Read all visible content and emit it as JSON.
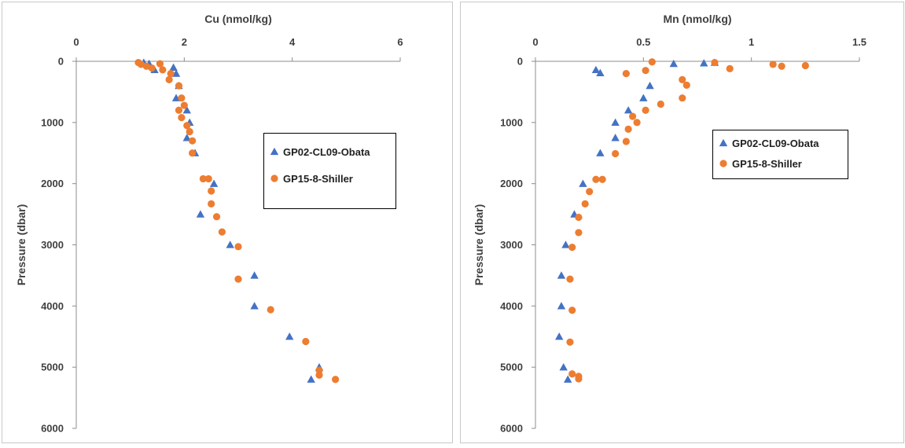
{
  "colors": {
    "series_a": "#4472C4",
    "series_b": "#ED7D31",
    "axis": "#8c8c8c",
    "panel_border": "#c8c8c8",
    "legend_border": "#000000",
    "text": "#404040"
  },
  "chart_data": [
    {
      "type": "scatter",
      "title": "",
      "xlabel": "Cu (nmol/kg)",
      "ylabel": "Pressure (dbar)",
      "x_axis_position": "top",
      "y_axis_reversed": true,
      "xlim": [
        0,
        6
      ],
      "ylim": [
        0,
        6000
      ],
      "xticks": [
        "0",
        "2",
        "4",
        "6"
      ],
      "yticks": [
        "0",
        "1000",
        "2000",
        "3000",
        "4000",
        "5000",
        "6000"
      ],
      "grid": false,
      "legend_position": "center-right",
      "series": [
        {
          "name": "GP02-CL09-Obata",
          "marker": "triangle",
          "color": "#4472C4",
          "points": [
            [
              1.25,
              20
            ],
            [
              1.35,
              40
            ],
            [
              1.45,
              140
            ],
            [
              1.8,
              100
            ],
            [
              1.85,
              200
            ],
            [
              1.9,
              400
            ],
            [
              1.85,
              600
            ],
            [
              2.05,
              800
            ],
            [
              2.1,
              1000
            ],
            [
              2.05,
              1250
            ],
            [
              2.2,
              1500
            ],
            [
              2.55,
              2000
            ],
            [
              2.3,
              2500
            ],
            [
              2.85,
              3000
            ],
            [
              3.3,
              3500
            ],
            [
              3.3,
              4000
            ],
            [
              3.95,
              4500
            ],
            [
              4.5,
              5000
            ],
            [
              4.35,
              5200
            ]
          ]
        },
        {
          "name": "GP15-8-Shiller",
          "marker": "circle",
          "color": "#ED7D31",
          "points": [
            [
              1.15,
              20
            ],
            [
              1.2,
              50
            ],
            [
              1.3,
              80
            ],
            [
              1.4,
              110
            ],
            [
              1.55,
              40
            ],
            [
              1.6,
              140
            ],
            [
              1.75,
              200
            ],
            [
              1.72,
              300
            ],
            [
              1.9,
              400
            ],
            [
              1.95,
              600
            ],
            [
              2.0,
              720
            ],
            [
              1.9,
              800
            ],
            [
              1.95,
              920
            ],
            [
              2.05,
              1050
            ],
            [
              2.1,
              1150
            ],
            [
              2.15,
              1300
            ],
            [
              2.15,
              1500
            ],
            [
              2.35,
              1920
            ],
            [
              2.45,
              1920
            ],
            [
              2.5,
              2120
            ],
            [
              2.5,
              2330
            ],
            [
              2.6,
              2540
            ],
            [
              2.7,
              2790
            ],
            [
              3.0,
              3030
            ],
            [
              3.0,
              3560
            ],
            [
              3.6,
              4060
            ],
            [
              4.25,
              4580
            ],
            [
              4.5,
              5050
            ],
            [
              4.5,
              5130
            ],
            [
              4.8,
              5200
            ]
          ]
        }
      ]
    },
    {
      "type": "scatter",
      "title": "",
      "xlabel": "Mn (nmol/kg)",
      "ylabel": "Pressure (dbar)",
      "x_axis_position": "top",
      "y_axis_reversed": true,
      "xlim": [
        0,
        1.5
      ],
      "ylim": [
        0,
        6000
      ],
      "xticks": [
        "0",
        "0.5",
        "1",
        "1.5"
      ],
      "yticks": [
        "0",
        "1000",
        "2000",
        "3000",
        "4000",
        "5000",
        "6000"
      ],
      "grid": false,
      "legend_position": "center-right",
      "series": [
        {
          "name": "GP02-CL09-Obata",
          "marker": "triangle",
          "color": "#4472C4",
          "points": [
            [
              0.64,
              40
            ],
            [
              0.78,
              30
            ],
            [
              0.83,
              20
            ],
            [
              0.28,
              140
            ],
            [
              0.3,
              190
            ],
            [
              0.53,
              400
            ],
            [
              0.5,
              600
            ],
            [
              0.43,
              800
            ],
            [
              0.37,
              1000
            ],
            [
              0.37,
              1250
            ],
            [
              0.3,
              1500
            ],
            [
              0.22,
              2000
            ],
            [
              0.18,
              2500
            ],
            [
              0.14,
              3000
            ],
            [
              0.12,
              3500
            ],
            [
              0.12,
              4000
            ],
            [
              0.11,
              4500
            ],
            [
              0.13,
              5000
            ],
            [
              0.15,
              5200
            ]
          ]
        },
        {
          "name": "GP15-8-Shiller",
          "marker": "circle",
          "color": "#ED7D31",
          "points": [
            [
              0.54,
              10
            ],
            [
              0.83,
              20
            ],
            [
              1.1,
              50
            ],
            [
              1.14,
              80
            ],
            [
              1.25,
              70
            ],
            [
              0.51,
              150
            ],
            [
              0.9,
              120
            ],
            [
              0.42,
              200
            ],
            [
              0.68,
              300
            ],
            [
              0.7,
              390
            ],
            [
              0.68,
              600
            ],
            [
              0.58,
              700
            ],
            [
              0.51,
              800
            ],
            [
              0.45,
              900
            ],
            [
              0.47,
              1000
            ],
            [
              0.43,
              1110
            ],
            [
              0.42,
              1310
            ],
            [
              0.37,
              1510
            ],
            [
              0.28,
              1930
            ],
            [
              0.31,
              1930
            ],
            [
              0.25,
              2130
            ],
            [
              0.23,
              2330
            ],
            [
              0.2,
              2550
            ],
            [
              0.2,
              2800
            ],
            [
              0.17,
              3040
            ],
            [
              0.16,
              3560
            ],
            [
              0.17,
              4070
            ],
            [
              0.16,
              4590
            ],
            [
              0.17,
              5110
            ],
            [
              0.2,
              5150
            ],
            [
              0.2,
              5190
            ]
          ]
        }
      ]
    }
  ]
}
